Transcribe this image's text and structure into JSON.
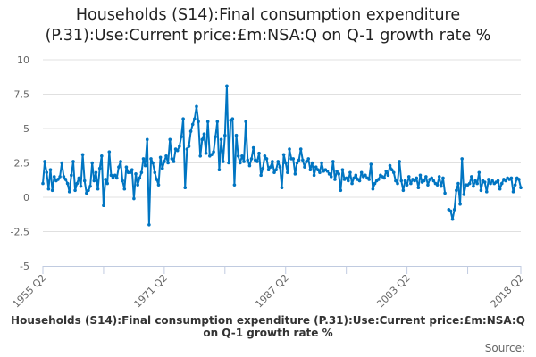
{
  "chart_data": {
    "type": "line",
    "title_lines": [
      "Households (S14):Final consumption expenditure",
      "(P.31):Use:Current price:£m:NSA:Q on Q-1 growth rate %"
    ],
    "series_name": "Households (S14):Final consumption expenditure (P.31):Use:Current price:£m:NSA:Q on Q-1 growth rate %",
    "source_label": "Source:",
    "start": "1955 Q2",
    "end": "2018 Q2",
    "x_tick_labels": [
      "1955 Q2",
      "1971 Q2",
      "1987 Q2",
      "2003 Q2",
      "2018 Q2"
    ],
    "y_ticks": [
      10,
      7.5,
      5,
      2.5,
      0,
      -2.5,
      -5
    ],
    "y_tick_labels": [
      "10",
      "7.5",
      "5",
      "2.5",
      "0",
      "-2.5",
      "-5"
    ],
    "ylim": [
      -5,
      10
    ],
    "grid": true,
    "color": "#0075c2",
    "values": [
      1.0,
      2.6,
      1.8,
      0.6,
      2.0,
      0.5,
      1.5,
      1.2,
      1.3,
      1.5,
      2.5,
      1.5,
      1.3,
      1.0,
      0.4,
      1.6,
      2.6,
      0.5,
      1.0,
      1.4,
      0.8,
      3.1,
      1.2,
      0.3,
      0.5,
      0.8,
      2.5,
      1.2,
      1.8,
      0.6,
      2.1,
      3.0,
      -0.6,
      1.3,
      1.0,
      3.3,
      1.6,
      1.4,
      1.6,
      1.4,
      2.2,
      2.6,
      1.2,
      0.6,
      2.2,
      1.8,
      1.8,
      2.0,
      -0.1,
      1.7,
      0.9,
      1.4,
      1.8,
      2.8,
      2.3,
      4.2,
      -2.0,
      2.8,
      2.5,
      1.8,
      1.3,
      0.9,
      2.9,
      2.1,
      2.6,
      3.0,
      2.5,
      4.2,
      2.8,
      2.6,
      3.5,
      3.4,
      3.7,
      4.4,
      5.7,
      0.7,
      3.5,
      3.7,
      4.8,
      5.3,
      5.7,
      6.6,
      5.5,
      3.0,
      4.2,
      4.6,
      3.2,
      5.5,
      3.0,
      3.1,
      3.3,
      4.4,
      5.5,
      2.0,
      4.2,
      2.6,
      4.5,
      8.1,
      2.5,
      5.6,
      5.7,
      0.9,
      4.5,
      3.0,
      2.5,
      3.0,
      2.6,
      5.5,
      2.7,
      2.3,
      2.8,
      3.6,
      2.7,
      2.6,
      3.2,
      1.6,
      2.1,
      3.0,
      2.8,
      2.0,
      2.2,
      2.6,
      1.8,
      2.0,
      2.6,
      2.2,
      0.7,
      3.1,
      2.5,
      1.8,
      3.5,
      2.8,
      2.8,
      1.7,
      2.5,
      2.7,
      3.5,
      2.7,
      2.2,
      2.6,
      2.8,
      2.0,
      2.5,
      1.6,
      2.2,
      2.0,
      1.8,
      2.5,
      1.9,
      2.0,
      1.9,
      1.7,
      1.5,
      2.6,
      1.3,
      1.9,
      1.7,
      0.5,
      2.0,
      1.3,
      1.4,
      1.2,
      1.8,
      1.0,
      1.4,
      1.6,
      1.3,
      1.2,
      1.8,
      1.5,
      1.6,
      1.4,
      1.3,
      2.4,
      0.6,
      1.0,
      1.2,
      1.3,
      1.6,
      1.5,
      1.4,
      1.9,
      1.6,
      2.3,
      2.0,
      1.8,
      1.2,
      1.0,
      2.6,
      1.2,
      0.5,
      1.2,
      0.9,
      1.5,
      1.0,
      1.3,
      1.2,
      1.4,
      0.7,
      1.6,
      1.1,
      1.2,
      1.5,
      0.9,
      1.3,
      1.4,
      1.2,
      1.0,
      0.9,
      1.5,
      0.8,
      1.4,
      0.3,
      null,
      -0.9,
      -1.0,
      -1.6,
      -0.9,
      0.5,
      1.0,
      -0.5,
      2.8,
      0.2,
      0.9,
      0.9,
      1.0,
      1.5,
      0.8,
      1.2,
      1.0,
      1.8,
      0.5,
      1.2,
      1.1,
      0.4,
      1.3,
      1.0,
      1.2,
      1.0,
      1.1,
      1.2,
      0.6,
      1.0,
      1.3,
      1.2,
      1.4,
      1.3,
      1.4,
      0.4,
      0.9,
      1.4,
      1.3,
      0.7
    ]
  }
}
